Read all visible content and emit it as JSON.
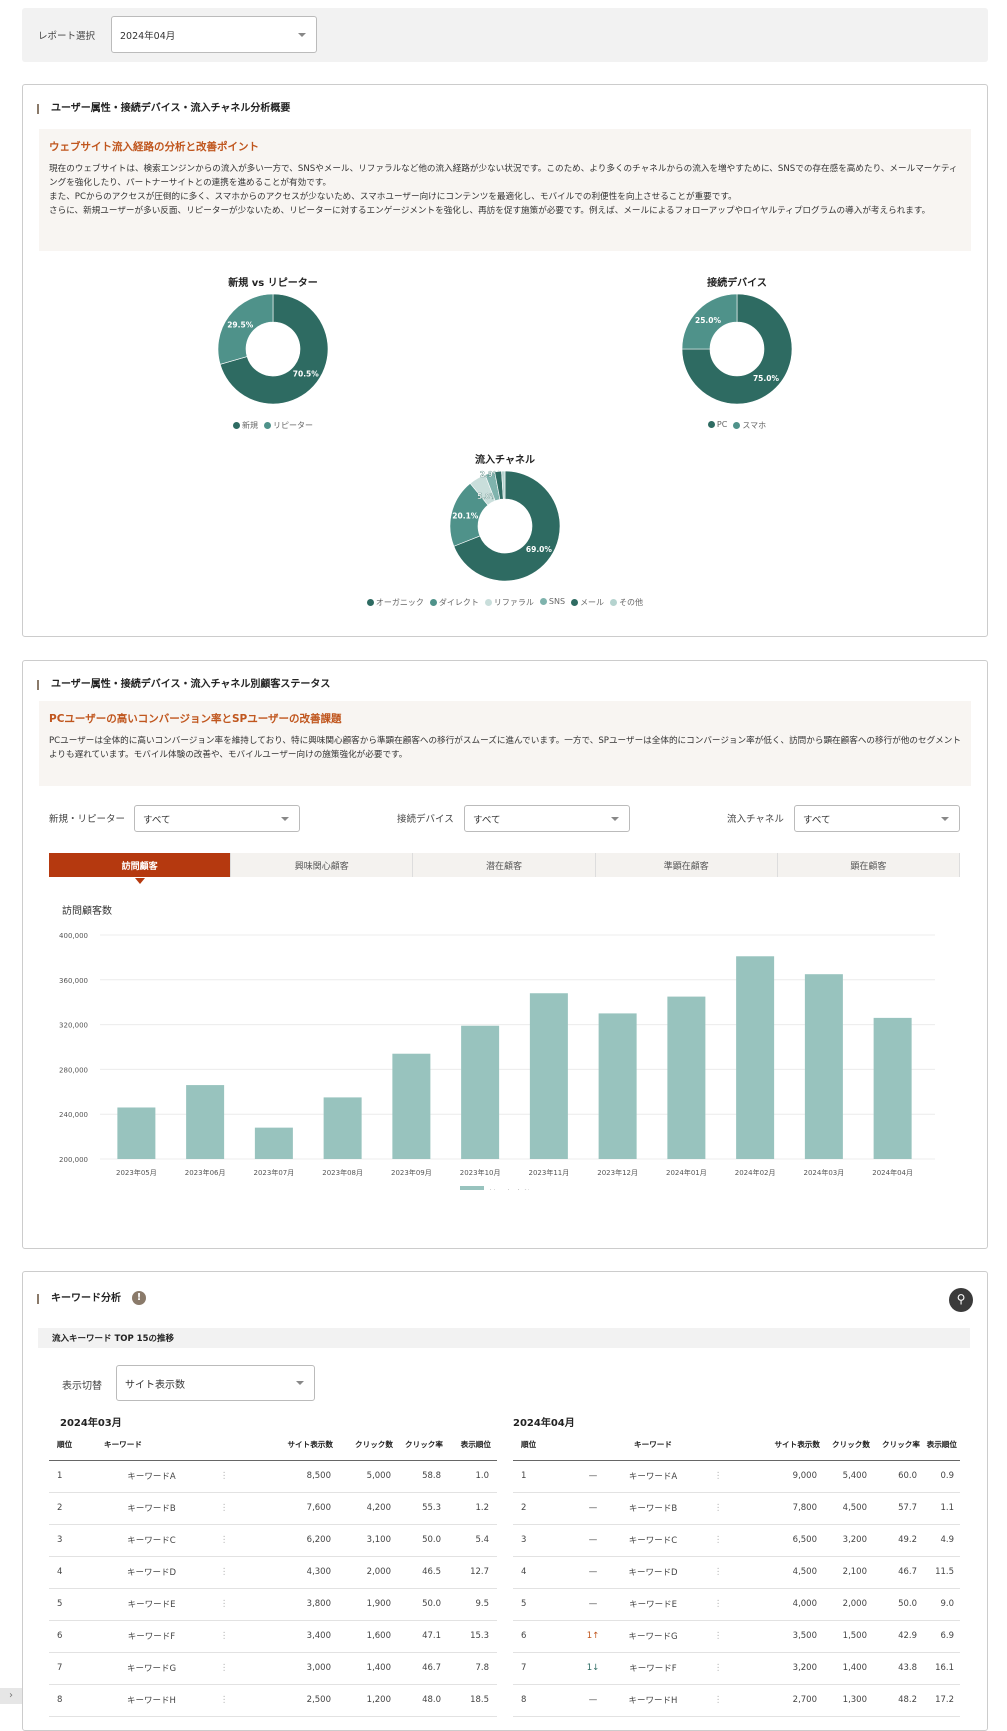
{
  "report_select": {
    "label": "レポート選択",
    "value": "2024年04月"
  },
  "section1": {
    "title": "ユーザー属性・接続デバイス・流入チャネル分析概要",
    "insight_title": "ウェブサイト流入経路の分析と改善ポイント",
    "insight_lines": [
      "現在のウェブサイトは、検索エンジンからの流入が多い一方で、SNSやメール、リファラルなど他の流入経路が少ない状況です。このため、より多くのチャネルからの流入を増やすために、SNSでの存在感を高めたり、メールマーケティングを強化したり、パートナーサイトとの連携を進めることが有効です。",
      "また、PCからのアクセスが圧倒的に多く、スマホからのアクセスが少ないため、スマホユーザー向けにコンテンツを最適化し、モバイルでの利便性を向上させることが重要です。",
      "さらに、新規ユーザーが多い反面、リピーターが少ないため、リピーターに対するエンゲージメントを強化し、再訪を促す施策が必要です。例えば、メールによるフォローアップやロイヤルティプログラムの導入が考えられます。"
    ]
  },
  "chart_data": [
    {
      "type": "pie",
      "title": "新規 vs リピーター",
      "labels": [
        "新規",
        "リピーター"
      ],
      "values": [
        70.5,
        29.5
      ],
      "colors": [
        "#2e6b62",
        "#4f928a"
      ],
      "legend": "bottom"
    },
    {
      "type": "pie",
      "title": "接続デバイス",
      "labels": [
        "PC",
        "スマホ"
      ],
      "values": [
        75.0,
        25.0
      ],
      "colors": [
        "#2e6b62",
        "#4f928a"
      ],
      "legend": "bottom"
    },
    {
      "type": "pie",
      "title": "流入チャネル",
      "labels": [
        "オーガニック",
        "ダイレクト",
        "リファラル",
        "SNS",
        "メール",
        "その他"
      ],
      "values": [
        69.0,
        20.1,
        5.0,
        2.9,
        2.0,
        1.0
      ],
      "colors": [
        "#2e6b62",
        "#4f928a",
        "#c9dedb",
        "#7fb3ad",
        "#2e6b62",
        "#b5d3cf"
      ],
      "legend": "bottom"
    },
    {
      "type": "bar",
      "title": "訪問顧客数",
      "categories": [
        "2023年05月",
        "2023年06月",
        "2023年07月",
        "2023年08月",
        "2023年09月",
        "2023年10月",
        "2023年11月",
        "2023年12月",
        "2024年01月",
        "2024年02月",
        "2024年03月",
        "2024年04月"
      ],
      "series": [
        {
          "name": "訪問顧客数",
          "values": [
            246000,
            266000,
            228000,
            255000,
            294000,
            319000,
            348000,
            330000,
            345000,
            381000,
            365000,
            326000
          ]
        }
      ],
      "ylim": [
        200000,
        400000
      ],
      "yticks": [
        "200,000",
        "240,000",
        "280,000",
        "320,000",
        "360,000",
        "400,000"
      ],
      "color": "#98c3be",
      "legend": "bottom",
      "grid": true
    }
  ],
  "section2": {
    "title": "ユーザー属性・接続デバイス・流入チャネル別顧客ステータス",
    "insight_title": "PCユーザーの高いコンバージョン率とSPユーザーの改善課題",
    "insight_text": "PCユーザーは全体的に高いコンバージョン率を維持しており、特に興味関心顧客から準顕在顧客への移行がスムーズに進んでいます。一方で、SPユーザーは全体的にコンバージョン率が低く、訪問から顕在顧客への移行が他のセグメントよりも遅れています。モバイル体験の改善や、モバイルユーザー向けの施策強化が必要です。",
    "filters": [
      {
        "label": "新規・リピーター",
        "value": "すべて"
      },
      {
        "label": "接続デバイス",
        "value": "すべて"
      },
      {
        "label": "流入チャネル",
        "value": "すべて"
      }
    ],
    "tabs": [
      "訪問顧客",
      "興味関心顧客",
      "潜在顧客",
      "準顕在顧客",
      "顕在顧客"
    ],
    "active_tab": 0
  },
  "section3": {
    "title": "キーワード分析",
    "subheader": "流入キーワード TOP 15の推移",
    "toggle_label": "表示切替",
    "toggle_value": "サイト表示数",
    "left": {
      "month": "2024年03月",
      "headers": [
        "順位",
        "キーワード",
        "",
        "サイト表示数",
        "クリック数",
        "クリック率",
        "表示順位"
      ],
      "rows": [
        [
          "1",
          "キーワードA",
          "8,500",
          "5,000",
          "58.8",
          "1.0"
        ],
        [
          "2",
          "キーワードB",
          "7,600",
          "4,200",
          "55.3",
          "1.2"
        ],
        [
          "3",
          "キーワードC",
          "6,200",
          "3,100",
          "50.0",
          "5.4"
        ],
        [
          "4",
          "キーワードD",
          "4,300",
          "2,000",
          "46.5",
          "12.7"
        ],
        [
          "5",
          "キーワードE",
          "3,800",
          "1,900",
          "50.0",
          "9.5"
        ],
        [
          "6",
          "キーワードF",
          "3,400",
          "1,600",
          "47.1",
          "15.3"
        ],
        [
          "7",
          "キーワードG",
          "3,000",
          "1,400",
          "46.7",
          "7.8"
        ],
        [
          "8",
          "キーワードH",
          "2,500",
          "1,200",
          "48.0",
          "18.5"
        ]
      ]
    },
    "right": {
      "month": "2024年04月",
      "headers": [
        "順位",
        "",
        "キーワード",
        "",
        "サイト表示数",
        "クリック数",
        "クリック率",
        "表示順位"
      ],
      "rows": [
        [
          "1",
          "—",
          "キーワードA",
          "9,000",
          "5,400",
          "60.0",
          "0.9"
        ],
        [
          "2",
          "—",
          "キーワードB",
          "7,800",
          "4,500",
          "57.7",
          "1.1"
        ],
        [
          "3",
          "—",
          "キーワードC",
          "6,500",
          "3,200",
          "49.2",
          "4.9"
        ],
        [
          "4",
          "—",
          "キーワードD",
          "4,500",
          "2,100",
          "46.7",
          "11.5"
        ],
        [
          "5",
          "—",
          "キーワードE",
          "4,000",
          "2,000",
          "50.0",
          "9.0"
        ],
        [
          "6",
          "1↑",
          "キーワードG",
          "3,500",
          "1,500",
          "42.9",
          "6.9"
        ],
        [
          "7",
          "1↓",
          "キーワードF",
          "3,200",
          "1,400",
          "43.8",
          "16.1"
        ],
        [
          "8",
          "—",
          "キーワードH",
          "2,700",
          "1,300",
          "48.2",
          "17.2"
        ]
      ]
    }
  },
  "colors": {
    "accent": "#b5390f",
    "insight_title": "#c0561e",
    "bar": "#98c3be",
    "dark_green": "#2e6b62"
  }
}
